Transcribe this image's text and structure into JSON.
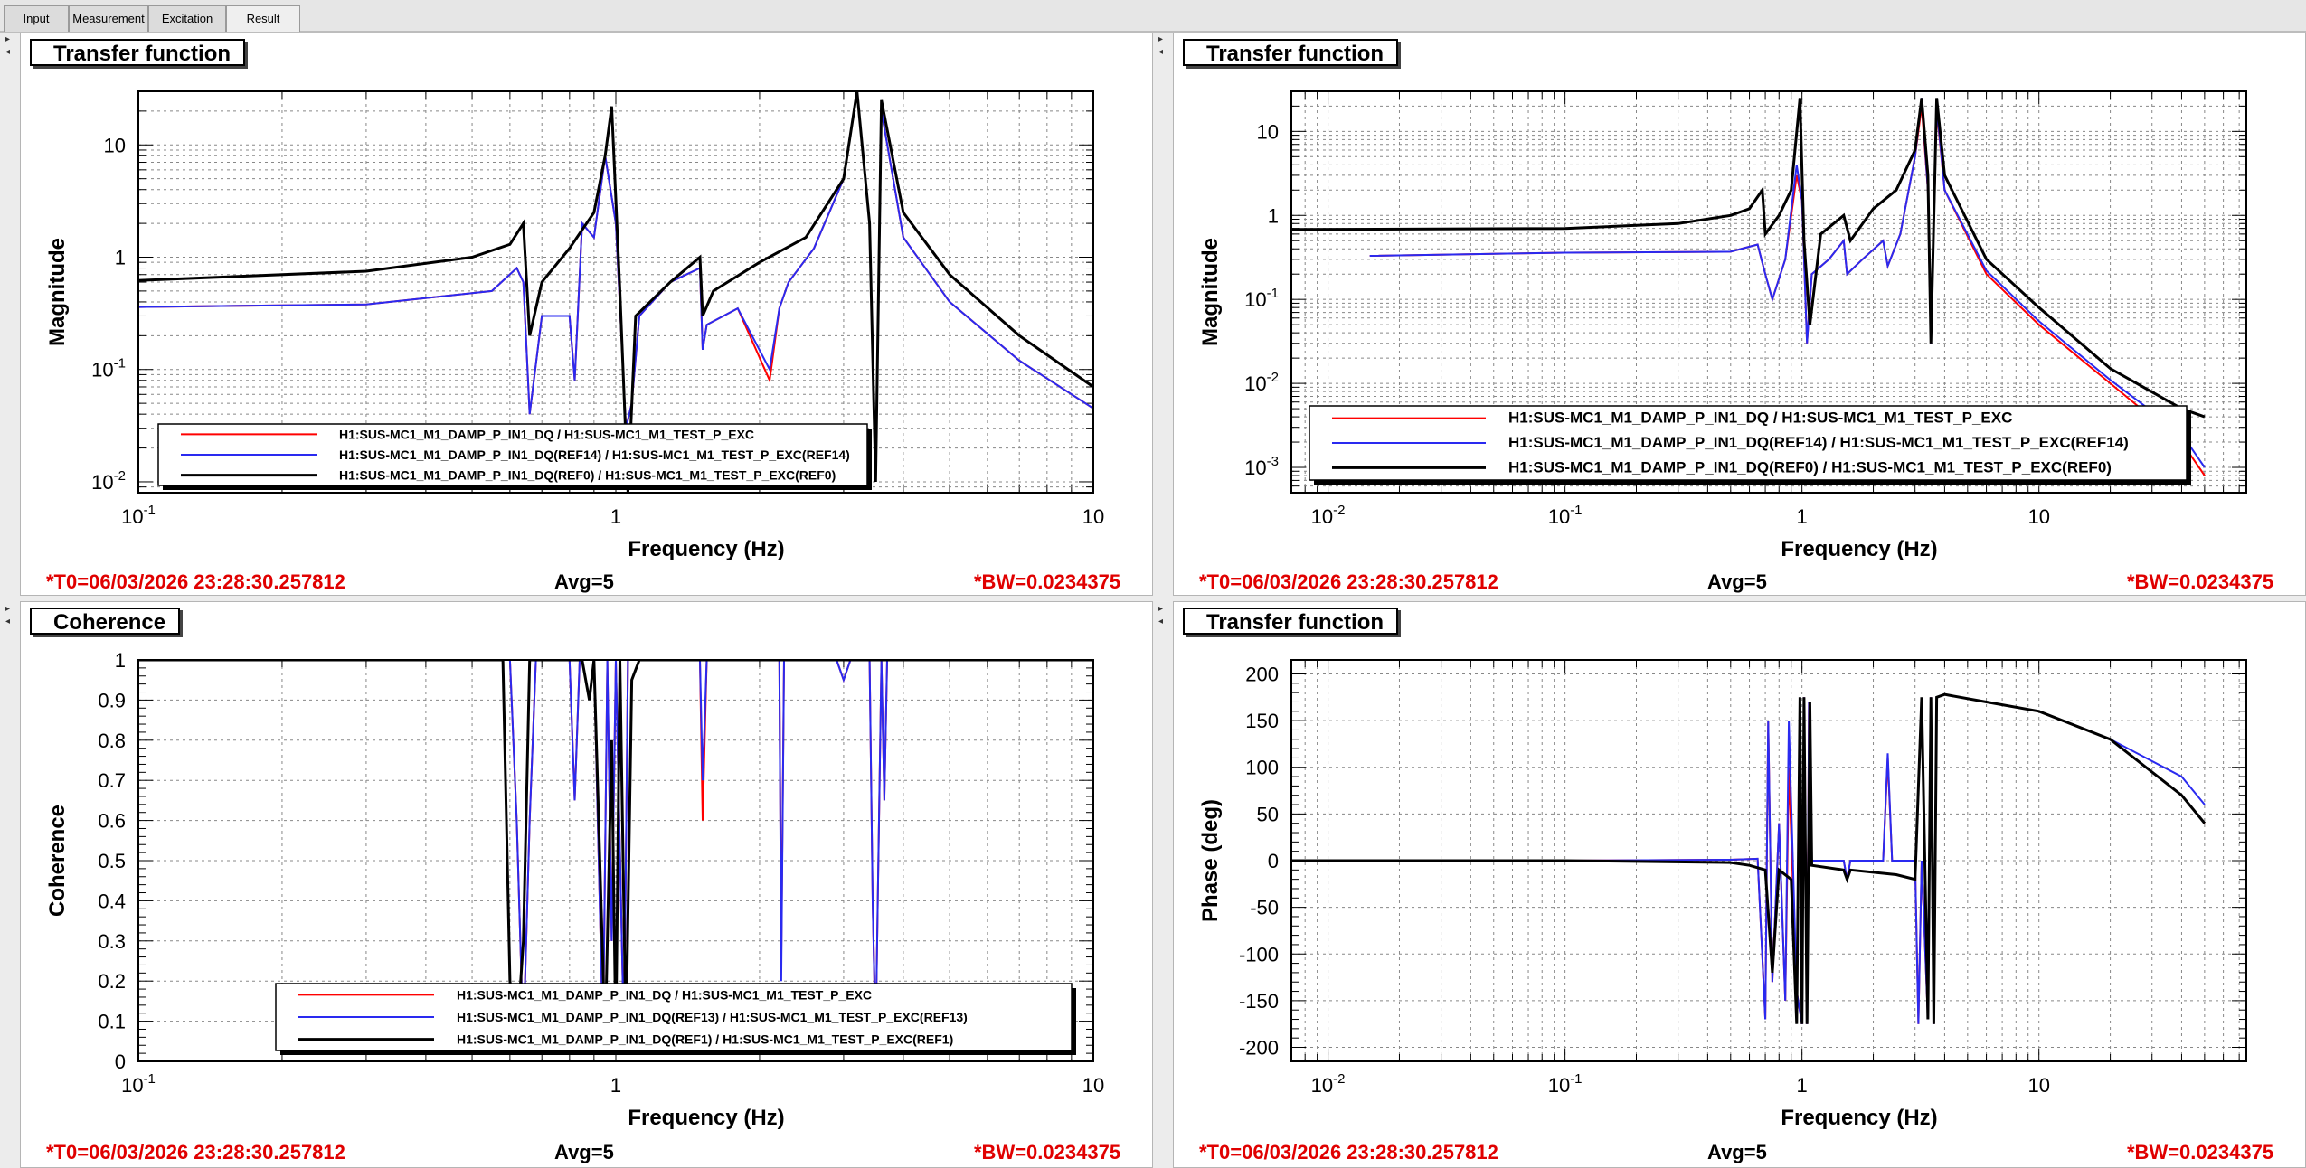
{
  "tabs": [
    "Input",
    "Measurement",
    "Excitation",
    "Result"
  ],
  "active_tab": "Result",
  "colors": {
    "red": "#ff0000",
    "blue": "#2a2af0",
    "black": "#000000",
    "footer_red": "#e00000"
  },
  "panels": [
    {
      "title": "Transfer function",
      "footer": {
        "t0": "*T0=06/03/2026 23:28:30.257812",
        "avg": "Avg=5",
        "bw": "*BW=0.0234375"
      }
    },
    {
      "title": "Transfer function",
      "footer": {
        "t0": "*T0=06/03/2026 23:28:30.257812",
        "avg": "Avg=5",
        "bw": "*BW=0.0234375"
      }
    },
    {
      "title": "Coherence",
      "footer": {
        "t0": "*T0=06/03/2026 23:28:30.257812",
        "avg": "Avg=5",
        "bw": "*BW=0.0234375"
      }
    },
    {
      "title": "Transfer function",
      "footer": {
        "t0": "*T0=06/03/2026 23:28:30.257812",
        "avg": "Avg=5",
        "bw": "*BW=0.0234375"
      }
    }
  ],
  "chart_data": [
    {
      "type": "line",
      "xlabel": "Frequency (Hz)",
      "ylabel": "Magnitude",
      "xscale": "log",
      "yscale": "log",
      "xlim": [
        0.1,
        10
      ],
      "ylim": [
        0.008,
        30
      ],
      "xticklabels": [
        "10^-1",
        "1",
        "10"
      ],
      "yticklabels": [
        "10^-2",
        "10^-1",
        "1",
        "10"
      ],
      "grid": true,
      "legend": "bottom-left",
      "series": [
        {
          "name": "H1:SUS-MC1_M1_DAMP_P_IN1_DQ / H1:SUS-MC1_M1_TEST_P_EXC",
          "color": "red",
          "x": [
            0.1,
            0.3,
            0.55,
            0.62,
            0.64,
            0.66,
            0.7,
            0.8,
            0.82,
            0.85,
            0.9,
            0.95,
            1.0,
            1.05,
            1.08,
            1.12,
            1.3,
            1.5,
            1.52,
            1.55,
            1.8,
            2.1,
            2.2,
            2.3,
            2.6,
            3.0,
            3.2,
            3.4,
            3.5,
            3.6,
            4.0,
            5.0,
            7.0,
            10.0
          ],
          "y": [
            0.36,
            0.38,
            0.5,
            0.8,
            0.6,
            0.04,
            0.3,
            0.3,
            0.08,
            2.0,
            1.5,
            8.0,
            2.0,
            0.03,
            0.05,
            0.3,
            0.6,
            0.8,
            0.15,
            0.25,
            0.35,
            0.08,
            0.35,
            0.6,
            1.2,
            5.0,
            30.0,
            2.0,
            0.01,
            20.0,
            1.5,
            0.4,
            0.12,
            0.045
          ]
        },
        {
          "name": "H1:SUS-MC1_M1_DAMP_P_IN1_DQ(REF14) / H1:SUS-MC1_M1_TEST_P_EXC(REF14)",
          "color": "blue",
          "x": [
            0.1,
            0.3,
            0.55,
            0.62,
            0.64,
            0.66,
            0.7,
            0.8,
            0.82,
            0.85,
            0.9,
            0.95,
            1.0,
            1.05,
            1.08,
            1.12,
            1.3,
            1.5,
            1.52,
            1.55,
            1.8,
            2.1,
            2.2,
            2.3,
            2.6,
            3.0,
            3.2,
            3.4,
            3.5,
            3.6,
            4.0,
            5.0,
            7.0,
            10.0
          ],
          "y": [
            0.36,
            0.38,
            0.5,
            0.8,
            0.6,
            0.04,
            0.3,
            0.3,
            0.08,
            2.0,
            1.5,
            8.0,
            2.0,
            0.03,
            0.05,
            0.3,
            0.6,
            0.8,
            0.15,
            0.25,
            0.35,
            0.1,
            0.35,
            0.6,
            1.2,
            5.0,
            30.0,
            2.0,
            0.01,
            20.0,
            1.5,
            0.4,
            0.12,
            0.045
          ]
        },
        {
          "name": "H1:SUS-MC1_M1_DAMP_P_IN1_DQ(REF0) / H1:SUS-MC1_M1_TEST_P_EXC(REF0)",
          "color": "black",
          "x": [
            0.1,
            0.3,
            0.5,
            0.6,
            0.64,
            0.66,
            0.7,
            0.8,
            0.9,
            0.95,
            0.98,
            1.02,
            1.06,
            1.1,
            1.3,
            1.5,
            1.52,
            1.6,
            2.0,
            2.5,
            3.0,
            3.2,
            3.4,
            3.5,
            3.6,
            4.0,
            5.0,
            7.0,
            10.0
          ],
          "y": [
            0.62,
            0.75,
            1.0,
            1.3,
            2.0,
            0.2,
            0.6,
            1.2,
            2.5,
            8.0,
            22.0,
            0.5,
            0.008,
            0.3,
            0.6,
            1.0,
            0.3,
            0.5,
            0.9,
            1.5,
            5.0,
            30.0,
            2.0,
            0.01,
            25.0,
            2.5,
            0.7,
            0.2,
            0.07
          ]
        }
      ]
    },
    {
      "type": "line",
      "xlabel": "Frequency (Hz)",
      "ylabel": "Magnitude",
      "xscale": "log",
      "yscale": "log",
      "xlim": [
        0.007,
        75
      ],
      "ylim": [
        0.0005,
        30
      ],
      "xticklabels": [
        "10^-2",
        "10^-1",
        "1",
        "10"
      ],
      "yticklabels": [
        "10^-3",
        "10^-2",
        "10^-1",
        "1",
        "10"
      ],
      "grid": true,
      "legend": "bottom-right",
      "series": [
        {
          "name": "H1:SUS-MC1_M1_DAMP_P_IN1_DQ / H1:SUS-MC1_M1_TEST_P_EXC",
          "color": "red",
          "x": [
            0.015,
            0.1,
            0.5,
            0.65,
            0.7,
            0.75,
            0.85,
            0.95,
            1.0,
            1.05,
            1.1,
            1.3,
            1.5,
            1.55,
            1.8,
            2.2,
            2.3,
            2.6,
            3.0,
            3.2,
            3.4,
            3.5,
            3.7,
            4.0,
            6.0,
            10.0,
            20.0,
            40.0,
            50.0
          ],
          "y": [
            0.33,
            0.36,
            0.37,
            0.45,
            0.2,
            0.1,
            0.3,
            3.0,
            1.5,
            0.03,
            0.2,
            0.3,
            0.5,
            0.2,
            0.3,
            0.5,
            0.25,
            0.6,
            5.0,
            20.0,
            2.0,
            0.03,
            18.0,
            2.0,
            0.2,
            0.05,
            0.01,
            0.002,
            0.0008
          ]
        },
        {
          "name": "H1:SUS-MC1_M1_DAMP_P_IN1_DQ(REF14) / H1:SUS-MC1_M1_TEST_P_EXC(REF14)",
          "color": "blue",
          "x": [
            0.015,
            0.1,
            0.5,
            0.65,
            0.7,
            0.75,
            0.85,
            0.95,
            1.0,
            1.05,
            1.1,
            1.3,
            1.5,
            1.55,
            1.8,
            2.2,
            2.3,
            2.6,
            3.0,
            3.2,
            3.4,
            3.5,
            3.7,
            4.0,
            6.0,
            10.0,
            20.0,
            40.0,
            50.0
          ],
          "y": [
            0.33,
            0.36,
            0.37,
            0.45,
            0.2,
            0.1,
            0.3,
            4.0,
            1.5,
            0.03,
            0.2,
            0.3,
            0.5,
            0.2,
            0.3,
            0.5,
            0.25,
            0.6,
            5.0,
            25.0,
            2.0,
            0.03,
            20.0,
            2.0,
            0.22,
            0.055,
            0.011,
            0.0025,
            0.001
          ]
        },
        {
          "name": "H1:SUS-MC1_M1_DAMP_P_IN1_DQ(REF0) / H1:SUS-MC1_M1_TEST_P_EXC(REF0)",
          "color": "black",
          "x": [
            0.007,
            0.1,
            0.3,
            0.5,
            0.6,
            0.68,
            0.7,
            0.8,
            0.9,
            0.98,
            1.02,
            1.08,
            1.2,
            1.5,
            1.6,
            2.0,
            2.5,
            3.0,
            3.2,
            3.4,
            3.5,
            3.7,
            4.0,
            6.0,
            10.0,
            20.0,
            40.0,
            50.0
          ],
          "y": [
            0.68,
            0.7,
            0.8,
            1.0,
            1.2,
            2.0,
            0.6,
            1.0,
            2.0,
            25.0,
            0.5,
            0.05,
            0.6,
            1.0,
            0.5,
            1.2,
            2.0,
            6.0,
            25.0,
            3.0,
            0.03,
            25.0,
            3.0,
            0.3,
            0.08,
            0.015,
            0.005,
            0.004
          ]
        }
      ]
    },
    {
      "type": "line",
      "xlabel": "Frequency (Hz)",
      "ylabel": "Coherence",
      "xscale": "log",
      "yscale": "linear",
      "xlim": [
        0.1,
        10
      ],
      "ylim": [
        0,
        1
      ],
      "xticklabels": [
        "10^-1",
        "1",
        "10"
      ],
      "yticklabels": [
        "0",
        "0.1",
        "0.2",
        "0.3",
        "0.4",
        "0.5",
        "0.6",
        "0.7",
        "0.8",
        "0.9",
        "1"
      ],
      "grid": true,
      "legend": "bottom-center",
      "series": [
        {
          "name": "H1:SUS-MC1_M1_DAMP_P_IN1_DQ / H1:SUS-MC1_M1_TEST_P_EXC",
          "color": "red",
          "x": [
            0.1,
            0.6,
            0.62,
            0.64,
            0.66,
            0.68,
            0.8,
            0.82,
            0.84,
            0.9,
            0.94,
            0.96,
            0.98,
            1.0,
            1.04,
            1.06,
            1.1,
            1.5,
            1.52,
            1.55,
            2.2,
            2.22,
            2.25,
            2.9,
            3.0,
            3.1,
            3.4,
            3.45,
            3.5,
            3.6,
            3.65,
            3.7,
            10.0
          ],
          "y": [
            1,
            1,
            0.6,
            0.05,
            0.6,
            1,
            1,
            0.65,
            1,
            1,
            0.05,
            1,
            0.3,
            1,
            0.05,
            1,
            1,
            1,
            0.6,
            1,
            1,
            0.25,
            1,
            1,
            0.95,
            1,
            1,
            0.4,
            0.05,
            1,
            0.65,
            1,
            1
          ]
        },
        {
          "name": "H1:SUS-MC1_M1_DAMP_P_IN1_DQ(REF13) / H1:SUS-MC1_M1_TEST_P_EXC(REF13)",
          "color": "blue",
          "x": [
            0.1,
            0.6,
            0.62,
            0.64,
            0.66,
            0.68,
            0.8,
            0.82,
            0.84,
            0.9,
            0.94,
            0.96,
            0.98,
            1.0,
            1.04,
            1.06,
            1.1,
            1.5,
            1.52,
            1.55,
            2.2,
            2.22,
            2.25,
            2.9,
            3.0,
            3.1,
            3.4,
            3.45,
            3.5,
            3.6,
            3.65,
            3.7,
            10.0
          ],
          "y": [
            1,
            1,
            0.6,
            0.05,
            0.6,
            1,
            1,
            0.65,
            1,
            1,
            0.05,
            1,
            0.3,
            1,
            0.05,
            1,
            1,
            1,
            0.7,
            1,
            1,
            0.2,
            1,
            1,
            0.95,
            1,
            1,
            0.4,
            0.05,
            1,
            0.65,
            1,
            1
          ]
        },
        {
          "name": "H1:SUS-MC1_M1_DAMP_P_IN1_DQ(REF1) / H1:SUS-MC1_M1_TEST_P_EXC(REF1)",
          "color": "black",
          "x": [
            0.1,
            0.58,
            0.6,
            0.62,
            0.64,
            0.66,
            0.7,
            0.85,
            0.88,
            0.9,
            0.95,
            0.98,
            1.0,
            1.02,
            1.05,
            1.08,
            1.12,
            1.15,
            10.0
          ],
          "y": [
            1,
            1,
            0.2,
            0.05,
            0.3,
            1,
            1,
            1,
            0.9,
            1,
            0.05,
            0.8,
            0.05,
            1,
            0.05,
            0.95,
            1,
            1,
            1
          ]
        }
      ]
    },
    {
      "type": "line",
      "xlabel": "Frequency (Hz)",
      "ylabel": "Phase (deg)",
      "xscale": "log",
      "yscale": "linear",
      "xlim": [
        0.007,
        75
      ],
      "ylim": [
        -215,
        215
      ],
      "xticklabels": [
        "10^-2",
        "10^-1",
        "1",
        "10"
      ],
      "yticklabels": [
        "-200",
        "-150",
        "-100",
        "-50",
        "0",
        "50",
        "100",
        "150",
        "200"
      ],
      "grid": true,
      "series": [
        {
          "name": "",
          "color": "red",
          "x": [
            0.007,
            0.1,
            0.5,
            0.65,
            0.7,
            0.72,
            0.75,
            0.8,
            0.85,
            0.88,
            0.95,
            1.0,
            1.02,
            1.05,
            1.07,
            1.1,
            1.2,
            1.5,
            1.55,
            1.6,
            2.2,
            2.3,
            2.4,
            3.0,
            3.1,
            3.2,
            3.4,
            3.5,
            3.6,
            3.7,
            4.0,
            6.0,
            10.0,
            20.0,
            40.0,
            50.0
          ],
          "y": [
            0,
            0,
            1,
            2,
            -170,
            150,
            -130,
            40,
            -150,
            100,
            -140,
            -175,
            175,
            -175,
            170,
            0,
            0,
            0,
            -20,
            0,
            0,
            110,
            0,
            0,
            -175,
            0,
            -170,
            175,
            -175,
            175,
            178,
            170,
            160,
            130,
            70,
            40
          ]
        },
        {
          "name": "",
          "color": "blue",
          "x": [
            0.007,
            0.1,
            0.5,
            0.65,
            0.7,
            0.72,
            0.75,
            0.8,
            0.85,
            0.88,
            0.95,
            1.0,
            1.02,
            1.05,
            1.07,
            1.1,
            1.2,
            1.5,
            1.55,
            1.6,
            2.2,
            2.3,
            2.4,
            3.0,
            3.1,
            3.2,
            3.4,
            3.5,
            3.6,
            3.7,
            4.0,
            6.0,
            10.0,
            20.0,
            40.0,
            50.0
          ],
          "y": [
            0,
            0,
            1,
            2,
            -170,
            150,
            -130,
            40,
            -150,
            150,
            -140,
            -175,
            175,
            -175,
            170,
            0,
            0,
            0,
            -20,
            0,
            0,
            115,
            0,
            0,
            -175,
            0,
            -170,
            175,
            -175,
            175,
            178,
            170,
            160,
            130,
            90,
            60
          ]
        },
        {
          "name": "",
          "color": "black",
          "x": [
            0.007,
            0.1,
            0.5,
            0.6,
            0.7,
            0.75,
            0.8,
            0.9,
            0.95,
            0.98,
            1.0,
            1.02,
            1.05,
            1.08,
            1.1,
            1.5,
            1.55,
            1.6,
            2.5,
            3.0,
            3.2,
            3.4,
            3.5,
            3.6,
            3.7,
            4.0,
            6.0,
            10.0,
            20.0,
            40.0,
            50.0
          ],
          "y": [
            0,
            0,
            -2,
            -5,
            -10,
            -120,
            -10,
            -20,
            -175,
            175,
            -175,
            175,
            -175,
            170,
            -5,
            -10,
            -20,
            -10,
            -15,
            -20,
            175,
            -170,
            175,
            -175,
            175,
            178,
            170,
            160,
            130,
            70,
            40
          ]
        }
      ]
    }
  ]
}
